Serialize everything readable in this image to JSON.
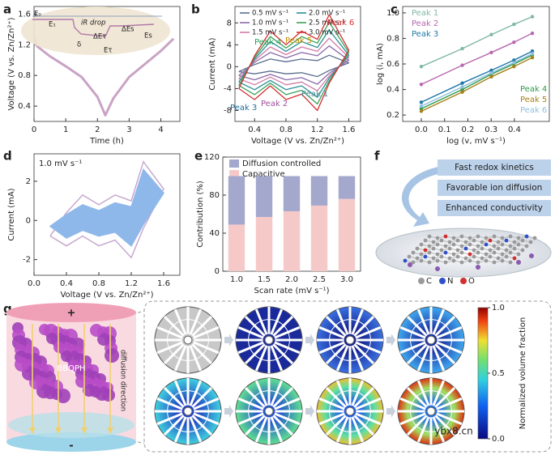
{
  "panel_labels": [
    "a",
    "b",
    "c",
    "d",
    "e",
    "f",
    "g"
  ],
  "chart_data": [
    {
      "type": "line",
      "x": [
        0,
        0.1,
        0.5,
        1.0,
        1.5,
        2.0,
        2.25,
        2.5,
        3.0,
        3.5,
        4.0,
        4.4
      ],
      "values": [
        1.3,
        1.18,
        1.05,
        0.92,
        0.78,
        0.52,
        0.28,
        0.5,
        0.78,
        0.95,
        1.12,
        1.28
      ],
      "color": "#c9a3c4",
      "xlim": [
        0,
        4.6
      ],
      "ylim": [
        0.2,
        1.7
      ],
      "xticks": [
        0,
        1,
        2,
        3,
        4
      ],
      "yticks": [
        0.4,
        0.8,
        1.2,
        1.6
      ],
      "xlabel": "Time (h)",
      "ylabel": "Voltage (V vs. Zn/Zn²⁺)",
      "annotations": [
        "E₀",
        "iR drop",
        "E₁",
        "ΔEτ",
        "ΔEs",
        "Es",
        "δ",
        "Eτ"
      ]
    },
    {
      "type": "line",
      "x": [
        0.2,
        0.4,
        0.6,
        0.8,
        1.0,
        1.2,
        1.35,
        1.6,
        1.35,
        1.2,
        1.0,
        0.8,
        0.6,
        0.4,
        0.2
      ],
      "series": [
        {
          "name": "0.5 mV s⁻¹",
          "color": "#5a6f8f",
          "values": [
            -0.9,
            0.4,
            1.4,
            0.9,
            1.4,
            1.1,
            2.1,
            0.7,
            -0.7,
            -1.8,
            -1.1,
            -1.3,
            -0.8,
            -1.3,
            -0.9
          ]
        },
        {
          "name": "1.0 mV s⁻¹",
          "color": "#8a6aa8",
          "values": [
            -1.6,
            0.8,
            2.6,
            1.6,
            2.6,
            2,
            3.8,
            1.2,
            -1.2,
            -3.2,
            -2,
            -2.4,
            -1.4,
            -2.4,
            -1.6
          ]
        },
        {
          "name": "1.5 mV s⁻¹",
          "color": "#d27aa6",
          "values": [
            -2.2,
            1.1,
            3.6,
            2.2,
            3.6,
            2.8,
            5.2,
            1.7,
            -1.7,
            -4.4,
            -2.8,
            -3.3,
            -1.9,
            -3.3,
            -2.2
          ]
        },
        {
          "name": "2.0 mV s⁻¹",
          "color": "#2a8f96",
          "values": [
            -2.8,
            1.4,
            4.6,
            2.8,
            4.6,
            3.5,
            6.7,
            2.1,
            -2.1,
            -5.6,
            -3.5,
            -4.2,
            -2.5,
            -4.2,
            -2.8
          ]
        },
        {
          "name": "2.5 mV s⁻¹",
          "color": "#3aa15a",
          "values": [
            -3.4,
            1.7,
            5.5,
            3.4,
            5.5,
            4.3,
            8.1,
            2.6,
            -2.6,
            -6.8,
            -4.3,
            -5.1,
            -3,
            -5.1,
            -3.4
          ]
        },
        {
          "name": "3.0 mV s⁻¹",
          "color": "#d43030",
          "values": [
            -4,
            2,
            6.5,
            4,
            6.5,
            5,
            9.5,
            3,
            -3,
            -8,
            -5,
            -6,
            -3.5,
            -6,
            -4
          ]
        }
      ],
      "xlim": [
        0.15,
        1.75
      ],
      "ylim": [
        -10,
        11
      ],
      "xticks": [
        0.4,
        0.8,
        1.2,
        1.6
      ],
      "yticks": [
        -8,
        -4,
        0,
        4,
        8
      ],
      "xlabel": "Voltage (V vs. Zn/Zn²⁺)",
      "ylabel": "Current (mA)",
      "annotations": [
        {
          "text": "Peak 1",
          "color": "#4f8f96"
        },
        {
          "text": "Peak 2",
          "color": "#a0509a"
        },
        {
          "text": "Peak 3",
          "color": "#1f6f9f"
        },
        {
          "text": "Peak 4",
          "color": "#2aa05a"
        },
        {
          "text": "Peak 5",
          "color": "#c09000"
        },
        {
          "text": "Peak 6",
          "color": "#d43030"
        }
      ]
    },
    {
      "type": "scatter",
      "x": [
        0,
        0.176,
        0.301,
        0.398,
        0.477
      ],
      "series": [
        {
          "name": "Peak 1",
          "color": "#7fb8a8",
          "values": [
            0.58,
            0.72,
            0.83,
            0.91,
            0.97
          ]
        },
        {
          "name": "Peak 2",
          "color": "#b868b0",
          "values": [
            0.44,
            0.59,
            0.69,
            0.77,
            0.84
          ]
        },
        {
          "name": "Peak 3",
          "color": "#1f78a8",
          "values": [
            0.3,
            0.45,
            0.55,
            0.63,
            0.7
          ]
        },
        {
          "name": "Peak 4",
          "color": "#2f9a4a",
          "values": [
            0.25,
            0.4,
            0.52,
            0.6,
            0.67
          ]
        },
        {
          "name": "Peak 5",
          "color": "#a8801a",
          "values": [
            0.23,
            0.38,
            0.5,
            0.58,
            0.65
          ]
        },
        {
          "name": "Peak 6",
          "color": "#8fc0e0",
          "values": [
            0.27,
            0.42,
            0.53,
            0.61,
            0.68
          ]
        }
      ],
      "xlim": [
        -0.08,
        0.55
      ],
      "ylim": [
        0.15,
        1.05
      ],
      "xticks": [
        {
          "value": 0,
          "label": "0.0"
        },
        0.1,
        0.2,
        0.3,
        0.4
      ],
      "yticks": [
        0.2,
        0.4,
        0.6,
        0.8,
        {
          "value": 1,
          "label": "1.0"
        }
      ],
      "xlabel": "log (v, mV s⁻¹)",
      "ylabel": "log (i, mA)"
    },
    {
      "type": "area",
      "x": [
        0.2,
        0.4,
        0.6,
        0.8,
        1.0,
        1.2,
        1.35,
        1.6,
        1.35,
        1.2,
        1.0,
        0.8,
        0.6,
        0.4,
        0.2
      ],
      "series": [
        {
          "color": "#c8a8d0",
          "values": [
            -0.8,
            0.4,
            1.3,
            0.8,
            1.3,
            1.0,
            3.0,
            1.6,
            -0.4,
            -1.9,
            -1.0,
            -1.3,
            -0.8,
            -1.3,
            -0.8
          ]
        },
        {
          "color": "#8fb8ea",
          "filled": true,
          "values": [
            -0.3,
            0.3,
            0.8,
            0.5,
            0.9,
            0.7,
            2.6,
            1.4,
            -0.2,
            -1.3,
            -0.6,
            -0.8,
            -0.5,
            -0.9,
            -0.3
          ]
        }
      ],
      "xlim": [
        0,
        1.8
      ],
      "ylim": [
        -2.8,
        3.4
      ],
      "xticks": [
        {
          "value": 0,
          "label": "0.0"
        },
        0.4,
        0.8,
        1.2,
        1.6
      ],
      "yticks": [
        -2,
        0,
        2
      ],
      "xlabel": "Voltage (V vs. Zn/Zn²⁺)",
      "ylabel": "Current (mA)",
      "annotation": "1.0 mV s⁻¹"
    },
    {
      "type": "bar",
      "stacked": true,
      "categories": [
        "1.0",
        "1.5",
        "2.0",
        "2.5",
        "3.0"
      ],
      "series": [
        {
          "name": "Capacitive",
          "color": "#f6c9c9",
          "values": [
            49,
            57,
            63,
            69,
            76
          ]
        },
        {
          "name": "Diffusion controlled",
          "color": "#a4a8cc",
          "values": [
            51,
            43,
            37,
            31,
            24
          ]
        }
      ],
      "ylim": [
        0,
        120
      ],
      "yticks": [
        0,
        40,
        80,
        120
      ],
      "xlabel": "Scan rate (mV s⁻¹)",
      "ylabel": "Contribution (%)"
    }
  ],
  "schematic_f": {
    "properties": [
      "Fast redox kinetics",
      "Favorable ion diffusion",
      "Enhanced conductivity"
    ],
    "atoms": [
      {
        "symbol": "C",
        "color": "#9a9a9a"
      },
      {
        "symbol": "N",
        "color": "#3050c8"
      },
      {
        "symbol": "O",
        "color": "#d03030"
      }
    ]
  },
  "schematic_g": {
    "top_electrode": "+",
    "material": "BBQPH",
    "arrow_label": "diffusion direction",
    "bottom_electrode": "-",
    "colorbar": {
      "range": [
        0,
        1
      ],
      "ticks": [
        {
          "value": 1,
          "label": "1.0"
        },
        0.5,
        {
          "value": 0,
          "label": "0.0"
        }
      ],
      "label": "Normalized volume fraction"
    }
  },
  "watermark": "ybx8.cn"
}
